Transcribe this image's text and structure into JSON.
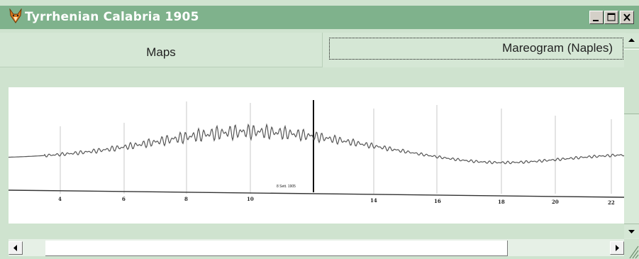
{
  "window": {
    "title": "Tyrrhenian Calabria 1905"
  },
  "titlebar_buttons": {
    "minimize": "minimize-icon",
    "maximize": "maximize-icon",
    "close": "close-icon"
  },
  "tabs": [
    {
      "label": "Maps",
      "selected": false
    },
    {
      "label": "Mareogram (Naples)",
      "selected": true
    }
  ],
  "mareogram": {
    "stamp": "8 Sett. 1905",
    "hour_labels": [
      "4",
      "6",
      "8",
      "10",
      "14",
      "16",
      "18",
      "20",
      "22"
    ]
  },
  "scrollbars": {
    "vertical": {
      "up": "arrow-up-icon",
      "down": "arrow-down-icon"
    },
    "horizontal": {
      "left": "arrow-left-icon",
      "right": "arrow-right-icon"
    }
  },
  "colors": {
    "titlebar": "#7fb28c",
    "window_bg": "#cfe3cf",
    "tab_bg": "#d5e7d5"
  }
}
